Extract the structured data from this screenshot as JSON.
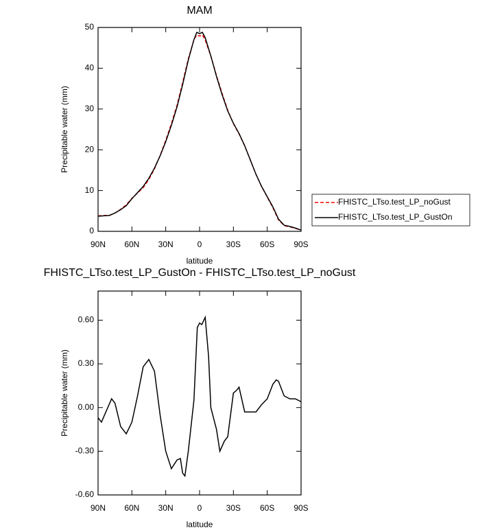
{
  "chart_data": [
    {
      "type": "line",
      "title": "MAM",
      "x_label": "latitude",
      "y_label": "Precipitable water (mm)",
      "x": [
        90,
        85,
        80,
        75,
        70,
        65,
        60,
        55,
        50,
        45,
        40,
        35,
        30,
        25,
        20,
        15,
        10,
        5,
        2.5,
        0,
        -2.5,
        -5,
        -10,
        -15,
        -20,
        -25,
        -30,
        -35,
        -40,
        -45,
        -50,
        -55,
        -60,
        -65,
        -70,
        -75,
        -80,
        -85,
        -90
      ],
      "series": [
        {
          "name": "FHISTC_LTso.test_LP_noGust",
          "color": "#ff0000",
          "dashed": true,
          "values": [
            3.8,
            3.9,
            3.9,
            4.5,
            5.4,
            6.5,
            8.1,
            9.4,
            10.7,
            12.7,
            15.3,
            18.6,
            22.3,
            26.4,
            30.9,
            36.5,
            42.3,
            47.0,
            48.2,
            47.9,
            48.2,
            46.9,
            43.0,
            38.2,
            33.8,
            29.7,
            26.4,
            23.9,
            21.0,
            17.5,
            14.0,
            11.0,
            8.4,
            5.8,
            2.8,
            1.4,
            1.1,
            0.7,
            0.3
          ]
        },
        {
          "name": "FHISTC_LTso.test_LP_GustOn",
          "color": "#000000",
          "dashed": false,
          "values": [
            3.7,
            3.8,
            3.9,
            4.5,
            5.3,
            6.3,
            8.0,
            9.5,
            11.0,
            13.0,
            15.5,
            18.5,
            22.0,
            26.0,
            30.5,
            36.0,
            42.0,
            47.0,
            48.8,
            48.5,
            48.8,
            47.5,
            43.0,
            38.0,
            33.5,
            29.5,
            26.5,
            24.0,
            21.0,
            17.5,
            14.0,
            11.0,
            8.5,
            6.0,
            3.0,
            1.5,
            1.2,
            0.8,
            0.3
          ]
        }
      ],
      "xlim": [
        90,
        -90
      ],
      "xticks": [
        {
          "value": 90,
          "label": "90N"
        },
        {
          "value": 60,
          "label": "60N"
        },
        {
          "value": 30,
          "label": "30N"
        },
        0,
        {
          "value": -30,
          "label": "30S"
        },
        {
          "value": -60,
          "label": "60S"
        },
        {
          "value": -90,
          "label": "90S"
        }
      ],
      "ylim": [
        0,
        50
      ],
      "yticks": [
        0,
        10,
        20,
        30,
        40,
        50
      ],
      "legend": "right"
    },
    {
      "type": "line",
      "title": "FHISTC_LTso.test_LP_GustOn - FHISTC_LTso.test_LP_noGust",
      "x_label": "latitude",
      "y_label": "Precipitable water (mm)",
      "x": [
        90,
        87,
        78,
        75,
        70,
        65,
        60,
        55,
        50,
        45,
        40,
        35,
        30,
        25,
        20,
        17,
        15,
        13,
        10,
        5,
        2,
        0,
        -2,
        -5,
        -8,
        -10,
        -15,
        -18,
        -22,
        -25,
        -30,
        -33,
        -35,
        -40,
        -45,
        -50,
        -55,
        -60,
        -65,
        -68,
        -70,
        -75,
        -80,
        -85,
        -90
      ],
      "series": [
        {
          "color": "#000000",
          "dashed": false,
          "values": [
            -0.07,
            -0.1,
            0.06,
            0.03,
            -0.13,
            -0.18,
            -0.1,
            0.08,
            0.28,
            0.33,
            0.25,
            -0.05,
            -0.3,
            -0.42,
            -0.36,
            -0.35,
            -0.45,
            -0.47,
            -0.3,
            0.05,
            0.55,
            0.58,
            0.57,
            0.62,
            0.35,
            0.0,
            -0.15,
            -0.3,
            -0.23,
            -0.2,
            0.1,
            0.12,
            0.14,
            -0.03,
            -0.03,
            -0.03,
            0.02,
            0.06,
            0.16,
            0.19,
            0.18,
            0.08,
            0.06,
            0.06,
            0.04
          ]
        }
      ],
      "xlim": [
        90,
        -90
      ],
      "xticks": [
        {
          "value": 90,
          "label": "90N"
        },
        {
          "value": 60,
          "label": "60N"
        },
        {
          "value": 30,
          "label": "30N"
        },
        0,
        {
          "value": -30,
          "label": "30S"
        },
        {
          "value": -60,
          "label": "60S"
        },
        {
          "value": -90,
          "label": "90S"
        }
      ],
      "ylim": [
        -0.6,
        0.8
      ],
      "yticks": [
        {
          "value": -0.6,
          "label": "-0.60"
        },
        {
          "value": -0.3,
          "label": "-0.30"
        },
        {
          "value": 0,
          "label": "0.00"
        },
        {
          "value": 0.3,
          "label": "0.30"
        },
        {
          "value": 0.6,
          "label": "0.60"
        }
      ]
    }
  ]
}
